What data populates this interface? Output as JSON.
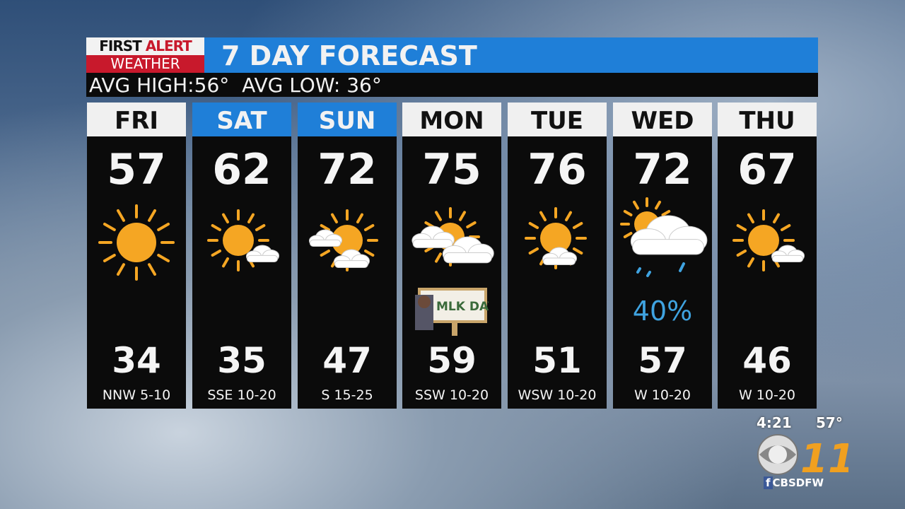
{
  "brand": {
    "logo_line1a": "FIRST",
    "logo_line1b": "ALERT",
    "logo_line2": "WEATHER"
  },
  "title": "7 DAY FORECAST",
  "averages": {
    "high_label": "AVG HIGH:",
    "high": "56°",
    "low_label": "AVG LOW:",
    "low": "36°"
  },
  "days": [
    {
      "day": "FRI",
      "weekend": false,
      "high": "57",
      "low": "34",
      "wind": "NNW 5-10",
      "icon": "sunny-icon"
    },
    {
      "day": "SAT",
      "weekend": true,
      "high": "62",
      "low": "35",
      "wind": "SSE 10-20",
      "icon": "mostly-sunny-icon"
    },
    {
      "day": "SUN",
      "weekend": true,
      "high": "72",
      "low": "47",
      "wind": "S 15-25",
      "icon": "partly-cloudy-icon"
    },
    {
      "day": "MON",
      "weekend": false,
      "high": "75",
      "low": "59",
      "wind": "SSW 10-20",
      "icon": "mostly-cloudy-icon",
      "badge": "MLK DAY"
    },
    {
      "day": "TUE",
      "weekend": false,
      "high": "76",
      "low": "51",
      "wind": "WSW 10-20",
      "icon": "partly-sunny-icon"
    },
    {
      "day": "WED",
      "weekend": false,
      "high": "72",
      "low": "57",
      "wind": "W 10-20",
      "icon": "rain-icon",
      "precip": "40%"
    },
    {
      "day": "THU",
      "weekend": false,
      "high": "67",
      "low": "46",
      "wind": "W 10-20",
      "icon": "mostly-sunny-icon"
    }
  ],
  "station": {
    "time": "4:21",
    "temp": "57°",
    "handle": "CBSDFW",
    "channel": "11"
  },
  "colors": {
    "blue": "#1f7fd8",
    "red": "#c8192c",
    "sun": "#f5a623",
    "rain": "#3fa3e0"
  }
}
